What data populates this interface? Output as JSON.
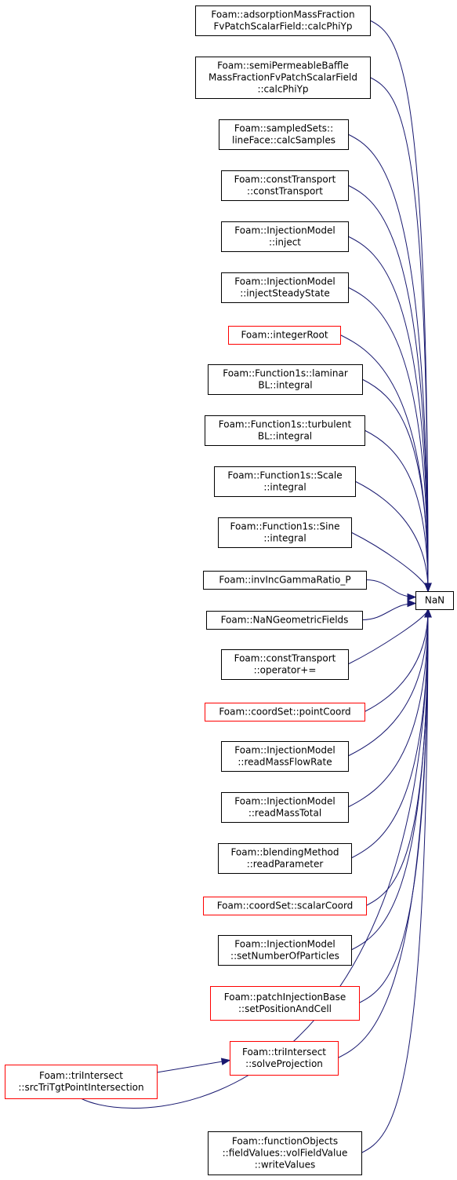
{
  "colors": {
    "edge": "#191970",
    "box_default": "#000000",
    "box_truncated": "#ff0000",
    "target_fill": "#bfbfbf"
  },
  "target": {
    "id": "target",
    "lines": [
      "NaN"
    ]
  },
  "nodes": [
    {
      "id": "n1",
      "lines": [
        "Foam::adsorptionMassFraction",
        "FvPatchScalarField::calcPhiYp"
      ],
      "border": "default"
    },
    {
      "id": "n2",
      "lines": [
        "Foam::semiPermeableBaffle",
        "MassFractionFvPatchScalarField",
        "::calcPhiYp"
      ],
      "border": "default"
    },
    {
      "id": "n3",
      "lines": [
        "Foam::sampledSets::",
        "lineFace::calcSamples"
      ],
      "border": "default"
    },
    {
      "id": "n4",
      "lines": [
        "Foam::constTransport",
        "::constTransport"
      ],
      "border": "default"
    },
    {
      "id": "n5",
      "lines": [
        "Foam::InjectionModel",
        "::inject"
      ],
      "border": "default"
    },
    {
      "id": "n6",
      "lines": [
        "Foam::InjectionModel",
        "::injectSteadyState"
      ],
      "border": "default"
    },
    {
      "id": "n7",
      "lines": [
        "Foam::integerRoot"
      ],
      "border": "truncated"
    },
    {
      "id": "n8",
      "lines": [
        "Foam::Function1s::laminar",
        "BL::integral"
      ],
      "border": "default"
    },
    {
      "id": "n9",
      "lines": [
        "Foam::Function1s::turbulent",
        "BL::integral"
      ],
      "border": "default"
    },
    {
      "id": "n10",
      "lines": [
        "Foam::Function1s::Scale",
        "::integral"
      ],
      "border": "default"
    },
    {
      "id": "n11",
      "lines": [
        "Foam::Function1s::Sine",
        "::integral"
      ],
      "border": "default"
    },
    {
      "id": "n12",
      "lines": [
        "Foam::invIncGammaRatio_P"
      ],
      "border": "default"
    },
    {
      "id": "n13",
      "lines": [
        "Foam::NaNGeometricFields"
      ],
      "border": "default"
    },
    {
      "id": "n14",
      "lines": [
        "Foam::constTransport",
        "::operator+="
      ],
      "border": "default"
    },
    {
      "id": "n15",
      "lines": [
        "Foam::coordSet::pointCoord"
      ],
      "border": "truncated"
    },
    {
      "id": "n16",
      "lines": [
        "Foam::InjectionModel",
        "::readMassFlowRate"
      ],
      "border": "default"
    },
    {
      "id": "n17",
      "lines": [
        "Foam::InjectionModel",
        "::readMassTotal"
      ],
      "border": "default"
    },
    {
      "id": "n18",
      "lines": [
        "Foam::blendingMethod",
        "::readParameter"
      ],
      "border": "default"
    },
    {
      "id": "n19",
      "lines": [
        "Foam::coordSet::scalarCoord"
      ],
      "border": "truncated"
    },
    {
      "id": "n20",
      "lines": [
        "Foam::InjectionModel",
        "::setNumberOfParticles"
      ],
      "border": "default"
    },
    {
      "id": "n21",
      "lines": [
        "Foam::patchInjectionBase",
        "::setPositionAndCell"
      ],
      "border": "truncated"
    },
    {
      "id": "n22",
      "lines": [
        "Foam::triIntersect",
        "::solveProjection"
      ],
      "border": "truncated"
    },
    {
      "id": "n23",
      "lines": [
        "Foam::triIntersect",
        "::srcTriTgtPointIntersection"
      ],
      "border": "truncated"
    },
    {
      "id": "n24",
      "lines": [
        "Foam::functionObjects",
        "::fieldValues::volFieldValue",
        "::writeValues"
      ],
      "border": "default"
    }
  ],
  "edges": [
    {
      "from": "n1",
      "to": "target"
    },
    {
      "from": "n2",
      "to": "target"
    },
    {
      "from": "n3",
      "to": "target"
    },
    {
      "from": "n4",
      "to": "target"
    },
    {
      "from": "n5",
      "to": "target"
    },
    {
      "from": "n6",
      "to": "target"
    },
    {
      "from": "n7",
      "to": "target"
    },
    {
      "from": "n8",
      "to": "target"
    },
    {
      "from": "n9",
      "to": "target"
    },
    {
      "from": "n10",
      "to": "target"
    },
    {
      "from": "n11",
      "to": "target"
    },
    {
      "from": "n12",
      "to": "target"
    },
    {
      "from": "n13",
      "to": "target"
    },
    {
      "from": "n14",
      "to": "target"
    },
    {
      "from": "n15",
      "to": "target"
    },
    {
      "from": "n16",
      "to": "target"
    },
    {
      "from": "n17",
      "to": "target"
    },
    {
      "from": "n18",
      "to": "target"
    },
    {
      "from": "n19",
      "to": "target"
    },
    {
      "from": "n20",
      "to": "target"
    },
    {
      "from": "n21",
      "to": "target"
    },
    {
      "from": "n22",
      "to": "target"
    },
    {
      "from": "n23",
      "to": "target"
    },
    {
      "from": "n24",
      "to": "target"
    },
    {
      "from": "n23",
      "to": "n22"
    }
  ]
}
